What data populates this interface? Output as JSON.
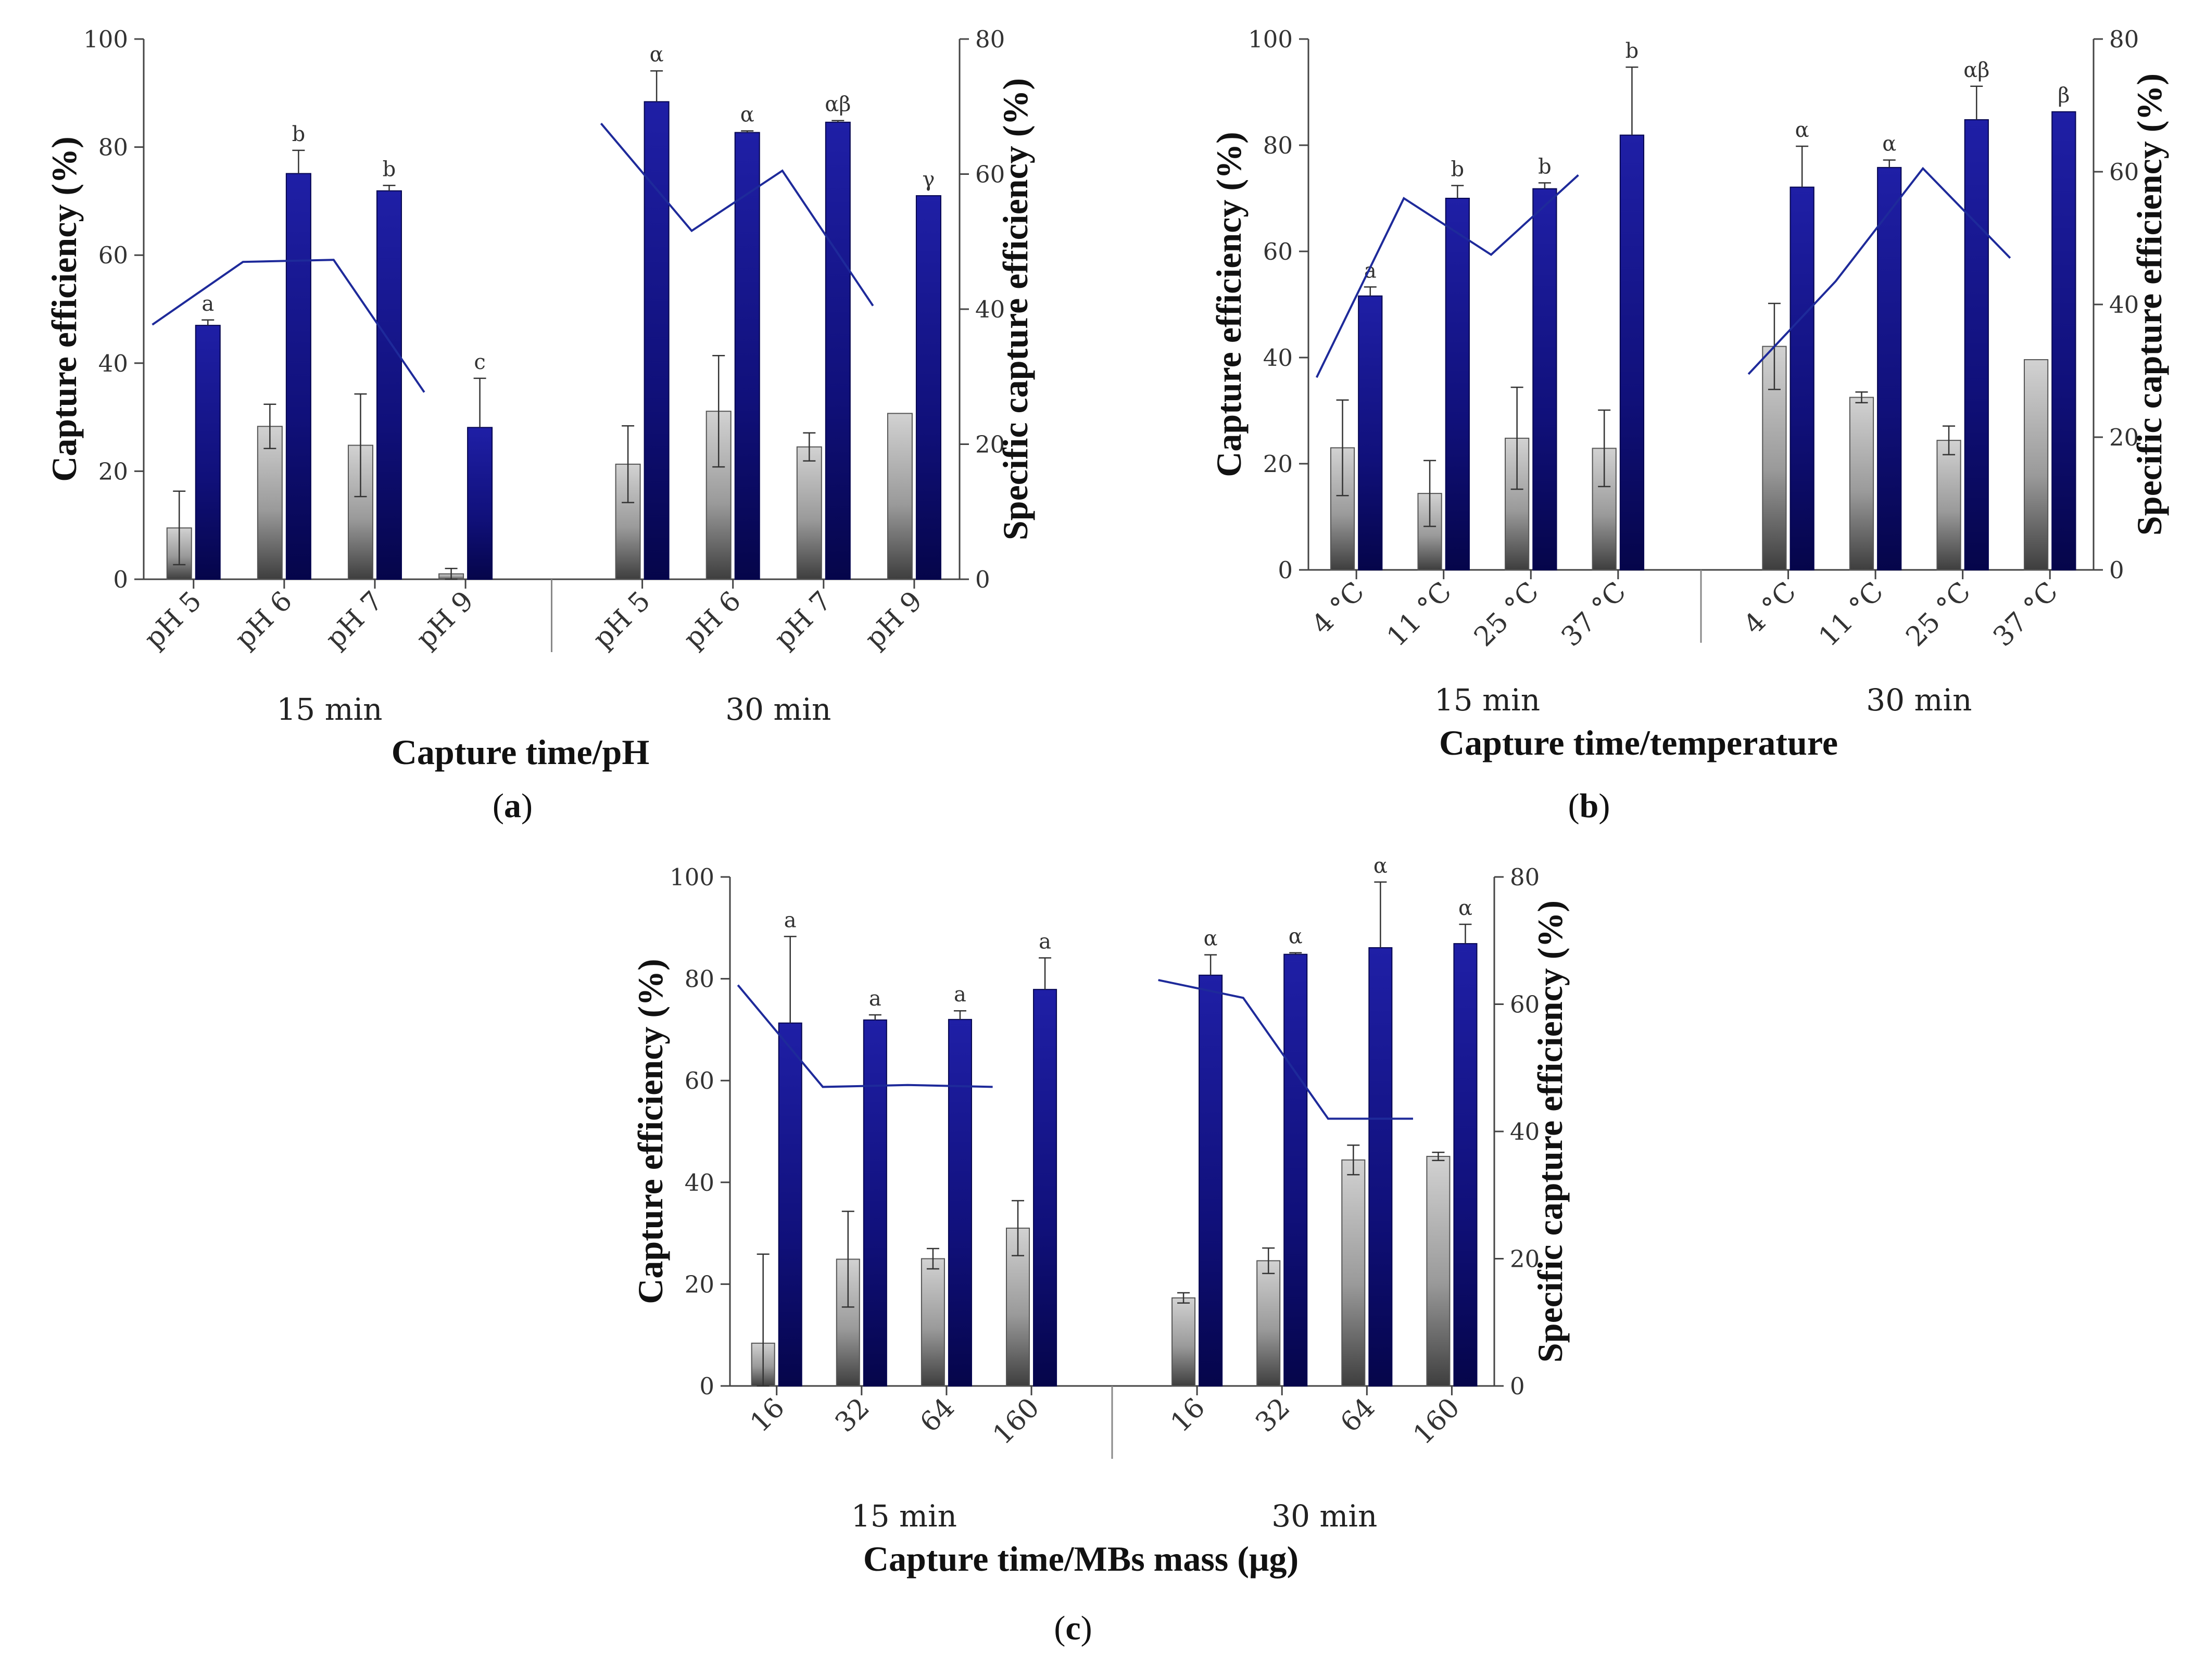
{
  "chart_data": [
    {
      "id": "a",
      "type": "bar",
      "panel_label": "a",
      "ylabel_left": "Capture efficiency (%)",
      "ylabel_right": "Specific capture efficiency (%)",
      "xlabel": "Capture time/pH",
      "ylim_left": [
        0,
        100
      ],
      "ylim_right": [
        0,
        80
      ],
      "yticks_left": [
        "0",
        "20",
        "40",
        "60",
        "80",
        "100"
      ],
      "yticks_right": [
        "0",
        "20",
        "40",
        "60",
        "80"
      ],
      "groups": [
        {
          "label": "15 min",
          "categories": [
            "pH 5",
            "pH 6",
            "pH 7",
            "pH 9"
          ],
          "grey": [
            9.5,
            28.3,
            24.8,
            1.0
          ],
          "grey_err": [
            6.8,
            4.1,
            9.5,
            1.0
          ],
          "blue": [
            47.0,
            75.1,
            71.9,
            28.1
          ],
          "blue_err": [
            1.0,
            4.3,
            1.0,
            9.1
          ],
          "line": [
            37.7,
            47.0,
            47.3,
            27.7
          ],
          "letters": [
            "a",
            "b",
            "b",
            "c"
          ]
        },
        {
          "label": "30 min",
          "categories": [
            "pH 5",
            "pH 6",
            "pH 7",
            "pH 9"
          ],
          "grey": [
            21.3,
            31.1,
            24.5,
            30.7
          ],
          "grey_err": [
            7.1,
            10.3,
            2.6,
            0
          ],
          "blue": [
            88.4,
            82.7,
            84.6,
            71.0
          ],
          "blue_err": [
            5.7,
            0.3,
            0.3,
            0
          ],
          "line": [
            67.5,
            51.6,
            60.5,
            40.5
          ],
          "letters": [
            "α",
            "α",
            "αβ",
            "γ"
          ]
        }
      ]
    },
    {
      "id": "b",
      "type": "bar",
      "panel_label": "b",
      "ylabel_left": "Capture efficiency (%)",
      "ylabel_right": "Specific capture efficiency (%)",
      "xlabel": "Capture time/temperature",
      "ylim_left": [
        0,
        100
      ],
      "ylim_right": [
        0,
        80
      ],
      "yticks_left": [
        "0",
        "20",
        "40",
        "60",
        "80",
        "100"
      ],
      "yticks_right": [
        "0",
        "20",
        "40",
        "60",
        "80"
      ],
      "groups": [
        {
          "label": "15 min",
          "categories": [
            "4 °C",
            "11 °C",
            "25 °C",
            "37 °C"
          ],
          "grey": [
            23.0,
            14.4,
            24.8,
            22.9
          ],
          "grey_err": [
            9.0,
            6.2,
            9.6,
            7.2
          ],
          "blue": [
            51.6,
            70.0,
            71.8,
            81.9
          ],
          "blue_err": [
            1.7,
            2.4,
            1.1,
            12.8
          ],
          "line": [
            29.0,
            56.0,
            47.5,
            59.5
          ],
          "letters": [
            "a",
            "b",
            "b",
            "b"
          ]
        },
        {
          "label": "30 min",
          "categories": [
            "4 °C",
            "11 °C",
            "25 °C",
            "37 °C"
          ],
          "grey": [
            42.1,
            32.5,
            24.4,
            39.6
          ],
          "grey_err": [
            8.1,
            1.0,
            2.7,
            0
          ],
          "blue": [
            72.1,
            75.8,
            84.8,
            86.3
          ],
          "blue_err": [
            7.7,
            1.4,
            6.3,
            0
          ],
          "line": [
            29.5,
            43.5,
            60.5,
            47.0
          ],
          "letters": [
            "α",
            "α",
            "αβ",
            "β"
          ]
        }
      ]
    },
    {
      "id": "c",
      "type": "bar",
      "panel_label": "c",
      "ylabel_left": "Capture efficiency (%)",
      "ylabel_right": "Specific capture efficiency (%)",
      "xlabel": "Capture time/MBs mass (μg)",
      "ylim_left": [
        0,
        100
      ],
      "ylim_right": [
        0,
        80
      ],
      "yticks_left": [
        "0",
        "20",
        "40",
        "60",
        "80",
        "100"
      ],
      "yticks_right": [
        "0",
        "20",
        "40",
        "60",
        "80"
      ],
      "groups": [
        {
          "label": "15 min",
          "categories": [
            "16",
            "32",
            "64",
            "160"
          ],
          "grey": [
            8.4,
            24.9,
            25.0,
            31.0
          ],
          "grey_err": [
            17.5,
            9.4,
            2.0,
            5.4
          ],
          "blue": [
            71.3,
            71.9,
            72.0,
            77.9
          ],
          "blue_err": [
            17.0,
            1.0,
            1.7,
            6.2
          ],
          "line": [
            63.0,
            47.0,
            47.3,
            47.0
          ],
          "letters": [
            "a",
            "a",
            "a",
            "a"
          ]
        },
        {
          "label": "30 min",
          "categories": [
            "16",
            "32",
            "64",
            "160"
          ],
          "grey": [
            17.3,
            24.6,
            44.4,
            45.1
          ],
          "grey_err": [
            1.0,
            2.5,
            2.9,
            0.8
          ],
          "blue": [
            80.7,
            84.8,
            86.1,
            86.9
          ],
          "blue_err": [
            4.0,
            0.3,
            12.9,
            3.8
          ],
          "line": [
            63.8,
            61.0,
            42.0,
            42.0
          ],
          "letters": [
            "α",
            "α",
            "α",
            "α"
          ]
        }
      ]
    }
  ]
}
